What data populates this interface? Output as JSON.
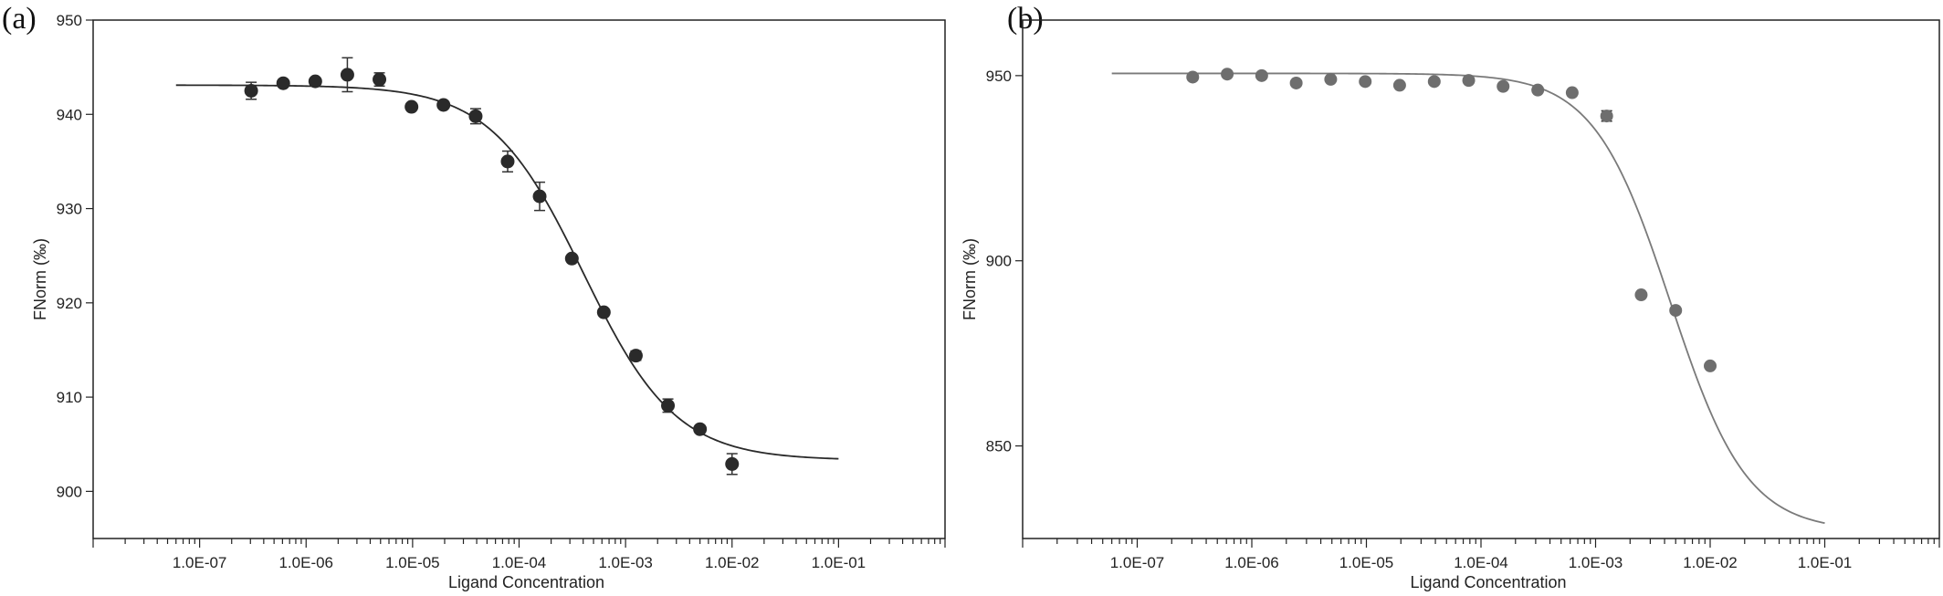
{
  "panels": {
    "a": "(a)",
    "b": "(b)"
  },
  "chart_data": [
    {
      "type": "scatter",
      "panel": "(a)",
      "title": "",
      "xlabel": "Ligand Concentration",
      "ylabel": "FNorm (‰)",
      "xscale": "log",
      "xlim": [
        1e-08,
        1
      ],
      "ylim": [
        895,
        950
      ],
      "xticks": [
        "1.0E-07",
        "1.0E-06",
        "1.0E-05",
        "1.0E-04",
        "1.0E-03",
        "1.0E-02",
        "1.0E-01"
      ],
      "yticks": [
        "900",
        "910",
        "920",
        "930",
        "940",
        "950"
      ],
      "grid": false,
      "marker_color": "#2a2a2a",
      "curve_color": "#2a2a2a",
      "points": [
        {
          "x": 3.05e-07,
          "y": 942.5,
          "err": 0.9
        },
        {
          "x": 6.1e-07,
          "y": 943.3,
          "err": 0
        },
        {
          "x": 1.22e-06,
          "y": 943.5,
          "err": 0
        },
        {
          "x": 2.44e-06,
          "y": 944.2,
          "err": 1.8
        },
        {
          "x": 4.88e-06,
          "y": 943.7,
          "err": 0.7
        },
        {
          "x": 9.77e-06,
          "y": 940.8,
          "err": 0
        },
        {
          "x": 1.95e-05,
          "y": 941.0,
          "err": 0
        },
        {
          "x": 3.91e-05,
          "y": 939.8,
          "err": 0.8
        },
        {
          "x": 7.81e-05,
          "y": 935.0,
          "err": 1.1
        },
        {
          "x": 0.000156,
          "y": 931.3,
          "err": 1.5
        },
        {
          "x": 0.000313,
          "y": 924.7,
          "err": 0
        },
        {
          "x": 0.000625,
          "y": 919.0,
          "err": 0
        },
        {
          "x": 0.00125,
          "y": 914.4,
          "err": 0.5
        },
        {
          "x": 0.0025,
          "y": 909.1,
          "err": 0.7
        },
        {
          "x": 0.005,
          "y": 906.6,
          "err": 0
        },
        {
          "x": 0.01,
          "y": 902.9,
          "err": 1.1
        }
      ],
      "fit": {
        "top": 943.1,
        "bottom": 903.3,
        "ec50": 0.0004,
        "hill": 1.0,
        "x_range": [
          6e-08,
          0.1
        ]
      }
    },
    {
      "type": "scatter",
      "panel": "(b)",
      "title": "",
      "xlabel": "Ligand Concentration",
      "ylabel": "FNorm (‰)",
      "xscale": "log",
      "xlim": [
        1e-08,
        1
      ],
      "ylim": [
        825,
        965
      ],
      "xticks": [
        "1.0E-07",
        "1.0E-06",
        "1.0E-05",
        "1.0E-04",
        "1.0E-03",
        "1.0E-02",
        "1.0E-01"
      ],
      "yticks": [
        "850",
        "900",
        "950"
      ],
      "grid": false,
      "marker_color": "#6e6e6e",
      "curve_color": "#7a7a7a",
      "points": [
        {
          "x": 3.05e-07,
          "y": 949.6,
          "err": 0
        },
        {
          "x": 6.1e-07,
          "y": 950.4,
          "err": 0
        },
        {
          "x": 1.22e-06,
          "y": 950.0,
          "err": 0
        },
        {
          "x": 2.44e-06,
          "y": 948.0,
          "err": 0
        },
        {
          "x": 4.88e-06,
          "y": 949.0,
          "err": 0
        },
        {
          "x": 9.77e-06,
          "y": 948.4,
          "err": 0
        },
        {
          "x": 1.95e-05,
          "y": 947.4,
          "err": 0
        },
        {
          "x": 3.91e-05,
          "y": 948.4,
          "err": 0
        },
        {
          "x": 7.81e-05,
          "y": 948.7,
          "err": 0
        },
        {
          "x": 0.000156,
          "y": 947.1,
          "err": 0
        },
        {
          "x": 0.000313,
          "y": 946.1,
          "err": 0
        },
        {
          "x": 0.000625,
          "y": 945.4,
          "err": 0
        },
        {
          "x": 0.00125,
          "y": 939.1,
          "err": 1.4
        },
        {
          "x": 0.0025,
          "y": 890.8,
          "err": 0
        },
        {
          "x": 0.005,
          "y": 886.6,
          "err": 0
        },
        {
          "x": 0.01,
          "y": 871.6,
          "err": 0
        }
      ],
      "fit": {
        "top": 950.6,
        "bottom": 827.0,
        "ec50": 0.0045,
        "hill": 1.3,
        "x_range": [
          6e-08,
          0.1
        ]
      }
    }
  ]
}
